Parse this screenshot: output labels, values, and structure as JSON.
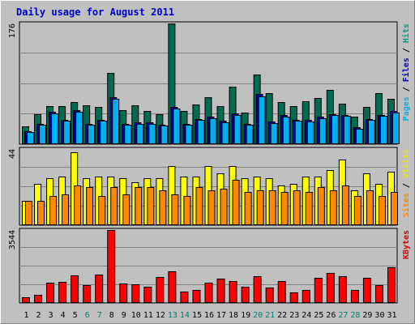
{
  "chart_data": {
    "type": "bar",
    "title": "Daily usage for August 2011",
    "categories": [
      "1",
      "2",
      "3",
      "4",
      "5",
      "6",
      "7",
      "8",
      "9",
      "10",
      "11",
      "12",
      "13",
      "14",
      "15",
      "16",
      "17",
      "18",
      "19",
      "20",
      "21",
      "22",
      "23",
      "24",
      "25",
      "26",
      "27",
      "28",
      "29",
      "30",
      "31"
    ],
    "weekend_days": [
      "6",
      "7",
      "13",
      "14",
      "20",
      "21",
      "27",
      "28"
    ],
    "panels": [
      {
        "name": "hits-files-pages",
        "scale_label": "176",
        "ylim": [
          0,
          176
        ],
        "labels": [
          {
            "text": "Pages",
            "color": "#00b0f0"
          },
          {
            "text": " / ",
            "color": "#000000"
          },
          {
            "text": "Files",
            "color": "#0000d0"
          },
          {
            "text": " / ",
            "color": "#000000"
          },
          {
            "text": "Hits",
            "color": "#00a080"
          }
        ],
        "series": [
          {
            "name": "Hits",
            "color": "#006b4e",
            "values": [
              26,
              44,
              55,
              56,
              62,
              57,
              54,
              104,
              50,
              57,
              49,
              44,
              176,
              48,
              58,
              68,
              55,
              84,
              46,
              101,
              74,
              62,
              55,
              63,
              67,
              79,
              59,
              40,
              54,
              74,
              66
            ]
          },
          {
            "name": "Files",
            "color": "#0000b0",
            "values": [
              19,
              30,
              47,
              36,
              50,
              30,
              36,
              68,
              30,
              32,
              32,
              28,
              54,
              30,
              37,
              40,
              34,
              45,
              30,
              73,
              33,
              42,
              36,
              35,
              40,
              44,
              43,
              25,
              37,
              43,
              48
            ]
          },
          {
            "name": "Pages",
            "color": "#00b0f0",
            "values": [
              18,
              28,
              45,
              34,
              47,
              28,
              34,
              66,
              28,
              30,
              30,
              27,
              52,
              28,
              35,
              38,
              32,
              43,
              28,
              70,
              31,
              40,
              34,
              33,
              38,
              42,
              41,
              23,
              35,
              41,
              46
            ]
          }
        ]
      },
      {
        "name": "visits-sites",
        "scale_label": "44",
        "ylim": [
          0,
          44
        ],
        "labels": [
          {
            "text": "Sites",
            "color": "#ff8800"
          },
          {
            "text": " / ",
            "color": "#000000"
          },
          {
            "text": "Visits",
            "color": "#e6e600"
          }
        ],
        "series": [
          {
            "name": "Visits",
            "color": "#ffff00",
            "values": [
              14,
              24,
              27,
              28,
              42,
              27,
              28,
              28,
              27,
              25,
              27,
              27,
              34,
              28,
              28,
              34,
              30,
              34,
              27,
              28,
              27,
              23,
              24,
              28,
              28,
              32,
              38,
              20,
              30,
              24,
              31
            ]
          },
          {
            "name": "Sites",
            "color": "#ff8800",
            "values": [
              14,
              14,
              17,
              18,
              23,
              22,
              17,
              22,
              18,
              22,
              22,
              20,
              18,
              17,
              22,
              20,
              21,
              26,
              19,
              20,
              20,
              19,
              20,
              19,
              22,
              20,
              23,
              17,
              20,
              17,
              19
            ]
          }
        ]
      },
      {
        "name": "kbytes",
        "scale_label": "3544",
        "ylim": [
          0,
          3544
        ],
        "labels": [
          {
            "text": "KBytes",
            "color": "#e00000"
          }
        ],
        "series": [
          {
            "name": "KBytes",
            "color": "#ff0000",
            "values": [
              260,
              390,
              1000,
              1020,
              1340,
              860,
              1360,
              3544,
              940,
              920,
              780,
              1260,
              1520,
              560,
              640,
              1000,
              1200,
              1080,
              800,
              1280,
              740,
              1080,
              520,
              640,
              1240,
              1460,
              1280,
              640,
              1220,
              860,
              1720
            ]
          }
        ]
      }
    ]
  }
}
